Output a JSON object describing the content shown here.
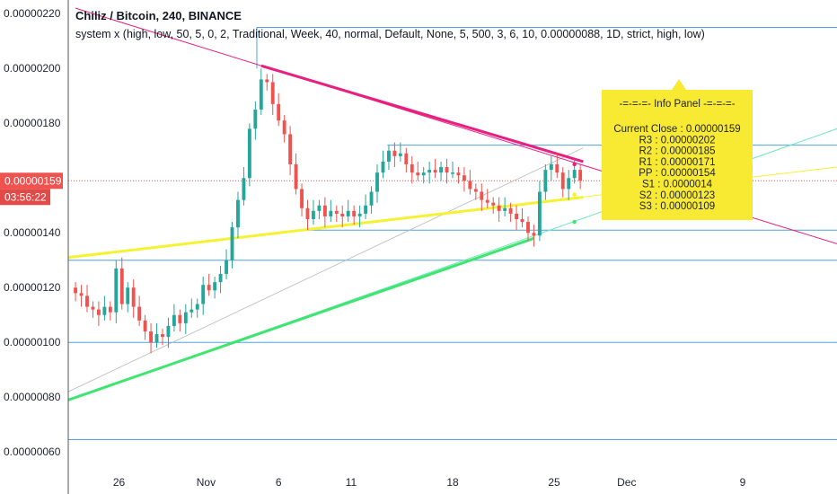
{
  "header": {
    "title": "Chiliz / Bitcoin, 240, BINANCE",
    "indicator": "system x (high, low, 50, 5, 0, 2, Traditional, Week, 40, normal, Default, None, 5, 500, 3, 6, 10, 0.00000088, 1D, strict, high, low)"
  },
  "price_tag": {
    "price": "0.00000159",
    "countdown": "03:56:22"
  },
  "info_panel": {
    "title": "-=-=-=- Info Panel -=-=-=-",
    "lines": [
      "Current Close : 0.00000159",
      "R3 : 0.00000202",
      "R2 : 0.00000185",
      "R1 : 0.00000171",
      "PP : 0.00000154",
      "S1 : 0.0000014",
      "S2 : 0.00000123",
      "S3 : 0.00000109"
    ]
  },
  "colors": {
    "up": "#26a69a",
    "down": "#ef5350",
    "pivot": "#4fa3e0",
    "resistance_trend": "#e91e80",
    "support_trend": "#3ee56f",
    "yellow_trend": "#f5f232",
    "tag_bg": "#ef5350",
    "panel_bg": "#f8ea32"
  },
  "chart_data": {
    "type": "candlestick",
    "y_axis": {
      "ticks": [
        {
          "value": 220,
          "label": "0.00000220"
        },
        {
          "value": 200,
          "label": "0.00000200"
        },
        {
          "value": 180,
          "label": "0.00000180"
        },
        {
          "value": 160,
          "label": "0.00000160"
        },
        {
          "value": 140,
          "label": "0.00000140"
        },
        {
          "value": 120,
          "label": "0.00000120"
        },
        {
          "value": 100,
          "label": "0.00000100"
        },
        {
          "value": 80,
          "label": "0.00000080"
        },
        {
          "value": 60,
          "label": "0.00000060"
        }
      ],
      "range": [
        54.5,
        225
      ],
      "unit_scale": "1e-8 BTC"
    },
    "x_axis": {
      "ticks": [
        {
          "day": 26,
          "label": "26"
        },
        {
          "day": 32,
          "label": "Nov"
        },
        {
          "day": 37,
          "label": "6"
        },
        {
          "day": 42,
          "label": "11"
        },
        {
          "day": 49,
          "label": "18"
        },
        {
          "day": 56,
          "label": "25"
        },
        {
          "day": 61,
          "label": "Dec"
        },
        {
          "day": 69,
          "label": "9"
        }
      ],
      "range": [
        22.5,
        75.5
      ]
    },
    "close_series": [
      [
        23.0,
        118
      ],
      [
        23.4,
        117
      ],
      [
        23.8,
        113
      ],
      [
        24.2,
        112
      ],
      [
        24.6,
        110
      ],
      [
        25.0,
        113
      ],
      [
        25.4,
        111
      ],
      [
        25.8,
        127
      ],
      [
        26.2,
        114
      ],
      [
        26.6,
        120
      ],
      [
        27.0,
        113
      ],
      [
        27.4,
        108
      ],
      [
        27.8,
        104
      ],
      [
        28.2,
        100
      ],
      [
        28.6,
        103
      ],
      [
        29.0,
        102
      ],
      [
        29.4,
        106
      ],
      [
        29.8,
        110
      ],
      [
        30.2,
        107
      ],
      [
        30.6,
        111
      ],
      [
        31.0,
        112
      ],
      [
        31.4,
        114
      ],
      [
        31.8,
        121
      ],
      [
        32.2,
        119
      ],
      [
        32.6,
        122
      ],
      [
        33.0,
        125
      ],
      [
        33.4,
        130
      ],
      [
        33.8,
        142
      ],
      [
        34.2,
        152
      ],
      [
        34.6,
        160
      ],
      [
        35.0,
        178
      ],
      [
        35.4,
        185
      ],
      [
        35.8,
        196
      ],
      [
        36.2,
        195
      ],
      [
        36.6,
        187
      ],
      [
        37.0,
        181
      ],
      [
        37.4,
        176
      ],
      [
        37.8,
        165
      ],
      [
        38.2,
        156
      ],
      [
        38.6,
        149
      ],
      [
        39.0,
        145
      ],
      [
        39.4,
        148
      ],
      [
        39.8,
        150
      ],
      [
        40.2,
        146
      ],
      [
        40.6,
        148
      ],
      [
        41.0,
        147
      ],
      [
        41.4,
        146
      ],
      [
        41.8,
        148
      ],
      [
        42.2,
        146
      ],
      [
        42.6,
        147
      ],
      [
        43.0,
        150
      ],
      [
        43.4,
        155
      ],
      [
        43.8,
        162
      ],
      [
        44.2,
        166
      ],
      [
        44.6,
        170
      ],
      [
        45.0,
        168
      ],
      [
        45.4,
        169
      ],
      [
        45.8,
        165
      ],
      [
        46.2,
        162
      ],
      [
        46.6,
        161
      ],
      [
        47.0,
        162
      ],
      [
        47.4,
        163
      ],
      [
        47.8,
        162
      ],
      [
        48.2,
        164
      ],
      [
        48.6,
        162
      ],
      [
        49.0,
        162
      ],
      [
        49.4,
        161
      ],
      [
        49.8,
        159
      ],
      [
        50.2,
        156
      ],
      [
        50.6,
        155
      ],
      [
        51.0,
        152
      ],
      [
        51.4,
        151
      ],
      [
        51.8,
        150
      ],
      [
        52.2,
        148
      ],
      [
        52.6,
        149
      ],
      [
        53.0,
        147
      ],
      [
        53.4,
        145
      ],
      [
        53.8,
        144
      ],
      [
        54.2,
        140
      ],
      [
        54.6,
        139
      ],
      [
        55.0,
        155
      ],
      [
        55.4,
        163
      ],
      [
        55.8,
        165
      ],
      [
        56.2,
        162
      ],
      [
        56.6,
        156
      ],
      [
        57.0,
        160
      ],
      [
        57.4,
        163
      ],
      [
        57.8,
        159
      ]
    ],
    "horizontal_levels": [
      {
        "name": "R3",
        "value": 215
      },
      {
        "name": "R1",
        "value": 172
      },
      {
        "name": "PP",
        "value": 141
      },
      {
        "name": "S1",
        "value": 130
      },
      {
        "name": "S2",
        "value": 100
      },
      {
        "name": "S3",
        "value": 64.5
      }
    ],
    "trend_lines": [
      {
        "name": "resistance",
        "points": [
          [
            23,
            222
          ],
          [
            75.5,
            136
          ]
        ]
      },
      {
        "name": "support",
        "points": [
          [
            22.5,
            79
          ],
          [
            75.5,
            178
          ]
        ]
      },
      {
        "name": "yellow",
        "points": [
          [
            22.5,
            131
          ],
          [
            75.5,
            164
          ]
        ]
      },
      {
        "name": "grey",
        "points": [
          [
            22.5,
            82
          ],
          [
            58,
            171
          ]
        ]
      }
    ]
  }
}
